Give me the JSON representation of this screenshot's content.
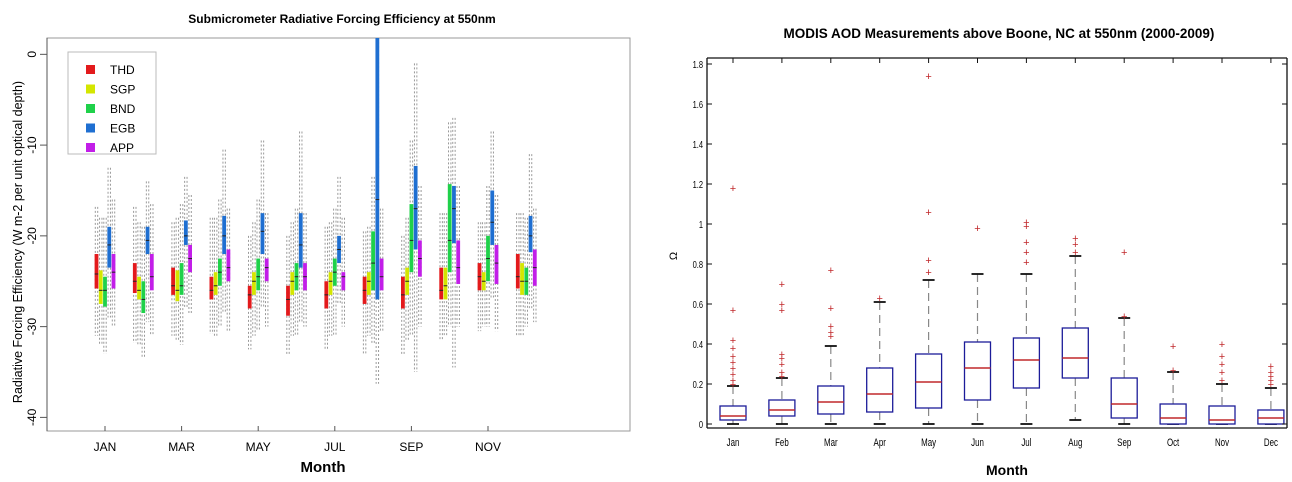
{
  "chart_data": [
    {
      "type": "box",
      "title": "Submicrometer Radiative Forcing Efficiency at 550nm",
      "xlabel": "Month",
      "ylabel": "Radiative Forcing Efficiency (W m-2 per unit optical depth)",
      "ylim": [
        -41.5,
        1.8
      ],
      "yticks": [
        0,
        -10,
        -20,
        -30,
        -40
      ],
      "ytick_labels": [
        "0",
        "-10",
        "-20",
        "-30",
        "-40"
      ],
      "x_ticks": [
        1,
        3,
        5,
        7,
        9,
        11
      ],
      "x_tick_labels": [
        "JAN",
        "MAR",
        "MAY",
        "JUL",
        "SEP",
        "NOV"
      ],
      "grid": false,
      "legend": "top-left",
      "months": [
        1,
        2,
        3,
        4,
        5,
        6,
        7,
        8,
        9,
        10,
        11,
        12
      ],
      "series": [
        {
          "name": "THD",
          "color": "#e31a1c",
          "boxes": [
            {
              "whisker_lo": -31.0,
              "q1": -25.8,
              "median": -24.2,
              "q3": -22.0,
              "whisker_hi": -16.8
            },
            {
              "whisker_lo": -31.8,
              "q1": -26.3,
              "median": -25.0,
              "q3": -23.0,
              "whisker_hi": -16.8
            },
            {
              "whisker_lo": -31.0,
              "q1": -26.5,
              "median": -25.5,
              "q3": -23.5,
              "whisker_hi": -18.5
            },
            {
              "whisker_lo": -30.8,
              "q1": -27.0,
              "median": -26.0,
              "q3": -24.5,
              "whisker_hi": -18.0
            },
            {
              "whisker_lo": -32.5,
              "q1": -28.0,
              "median": -26.5,
              "q3": -25.5,
              "whisker_hi": -20.0
            },
            {
              "whisker_lo": -33.0,
              "q1": -28.8,
              "median": -27.0,
              "q3": -25.5,
              "whisker_hi": -20.0
            },
            {
              "whisker_lo": -32.5,
              "q1": -28.0,
              "median": -26.5,
              "q3": -25.0,
              "whisker_hi": -19.0
            },
            {
              "whisker_lo": -33.0,
              "q1": -27.5,
              "median": -26.0,
              "q3": -24.5,
              "whisker_hi": -19.5
            },
            {
              "whisker_lo": -33.0,
              "q1": -28.0,
              "median": -26.5,
              "q3": -24.5,
              "whisker_hi": -20.0
            },
            {
              "whisker_lo": -31.5,
              "q1": -27.0,
              "median": -26.0,
              "q3": -23.5,
              "whisker_hi": -17.5
            },
            {
              "whisker_lo": -30.5,
              "q1": -26.0,
              "median": -24.5,
              "q3": -23.0,
              "whisker_hi": -18.5
            },
            {
              "whisker_lo": -31.0,
              "q1": -25.8,
              "median": -24.5,
              "q3": -22.0,
              "whisker_hi": -17.5
            }
          ]
        },
        {
          "name": "SGP",
          "color": "#d4e600",
          "boxes": [
            {
              "whisker_lo": -32.0,
              "q1": -27.5,
              "median": -26.0,
              "q3": -23.8,
              "whisker_hi": -18.0
            },
            {
              "whisker_lo": -32.0,
              "q1": -27.0,
              "median": -26.0,
              "q3": -24.5,
              "whisker_hi": -18.5
            },
            {
              "whisker_lo": -31.5,
              "q1": -27.2,
              "median": -26.0,
              "q3": -23.8,
              "whisker_hi": -18.0
            },
            {
              "whisker_lo": -31.0,
              "q1": -26.5,
              "median": -25.5,
              "q3": -24.0,
              "whisker_hi": -18.0
            },
            {
              "whisker_lo": -31.0,
              "q1": -26.5,
              "median": -25.0,
              "q3": -24.0,
              "whisker_hi": -18.5
            },
            {
              "whisker_lo": -31.0,
              "q1": -26.5,
              "median": -25.0,
              "q3": -24.0,
              "whisker_hi": -18.5
            },
            {
              "whisker_lo": -31.0,
              "q1": -26.5,
              "median": -25.0,
              "q3": -24.0,
              "whisker_hi": -18.5
            },
            {
              "whisker_lo": -31.0,
              "q1": -26.5,
              "median": -25.0,
              "q3": -24.0,
              "whisker_hi": -19.0
            },
            {
              "whisker_lo": -31.5,
              "q1": -26.5,
              "median": -25.0,
              "q3": -23.5,
              "whisker_hi": -18.0
            },
            {
              "whisker_lo": -31.0,
              "q1": -27.0,
              "median": -25.5,
              "q3": -23.5,
              "whisker_hi": -17.5
            },
            {
              "whisker_lo": -30.0,
              "q1": -26.0,
              "median": -25.0,
              "q3": -24.0,
              "whisker_hi": -18.5
            },
            {
              "whisker_lo": -31.0,
              "q1": -26.5,
              "median": -25.0,
              "q3": -23.0,
              "whisker_hi": -17.5
            }
          ]
        },
        {
          "name": "BND",
          "color": "#1fd14a",
          "boxes": [
            {
              "whisker_lo": -33.0,
              "q1": -27.8,
              "median": -26.0,
              "q3": -24.5,
              "whisker_hi": -18.0
            },
            {
              "whisker_lo": -33.5,
              "q1": -28.5,
              "median": -27.0,
              "q3": -25.0,
              "whisker_hi": -19.0
            },
            {
              "whisker_lo": -32.0,
              "q1": -26.5,
              "median": -25.5,
              "q3": -23.0,
              "whisker_hi": -16.5
            },
            {
              "whisker_lo": -30.0,
              "q1": -25.5,
              "median": -24.0,
              "q3": -22.5,
              "whisker_hi": -16.0
            },
            {
              "whisker_lo": -30.5,
              "q1": -26.0,
              "median": -24.5,
              "q3": -22.5,
              "whisker_hi": -16.0
            },
            {
              "whisker_lo": -31.0,
              "q1": -26.0,
              "median": -24.5,
              "q3": -23.0,
              "whisker_hi": -17.0
            },
            {
              "whisker_lo": -31.0,
              "q1": -25.5,
              "median": -24.0,
              "q3": -22.5,
              "whisker_hi": -17.0
            },
            {
              "whisker_lo": -32.0,
              "q1": -26.0,
              "median": -23.0,
              "q3": -19.5,
              "whisker_hi": -13.5
            },
            {
              "whisker_lo": -31.0,
              "q1": -24.0,
              "median": -20.5,
              "q3": -16.5,
              "whisker_hi": -9.5
            },
            {
              "whisker_lo": -30.0,
              "q1": -24.0,
              "median": -20.5,
              "q3": -14.3,
              "whisker_hi": -7.5
            },
            {
              "whisker_lo": -30.0,
              "q1": -25.0,
              "median": -22.5,
              "q3": -20.0,
              "whisker_hi": -14.5
            },
            {
              "whisker_lo": -30.0,
              "q1": -26.5,
              "median": -25.0,
              "q3": -23.5,
              "whisker_hi": -18.0
            }
          ]
        },
        {
          "name": "EGB",
          "color": "#1f6fd1",
          "boxes": [
            {
              "whisker_lo": -29.0,
              "q1": -23.5,
              "median": -21.0,
              "q3": -19.0,
              "whisker_hi": -12.5
            },
            {
              "whisker_lo": -29.5,
              "q1": -22.0,
              "median": -20.5,
              "q3": -19.0,
              "whisker_hi": -14.0
            },
            {
              "whisker_lo": -28.0,
              "q1": -21.0,
              "median": -20.0,
              "q3": -18.3,
              "whisker_hi": -13.5
            },
            {
              "whisker_lo": -28.5,
              "q1": -22.0,
              "median": -20.0,
              "q3": -17.8,
              "whisker_hi": -10.5
            },
            {
              "whisker_lo": -28.0,
              "q1": -22.0,
              "median": -19.5,
              "q3": -17.5,
              "whisker_hi": -9.5
            },
            {
              "whisker_lo": -29.5,
              "q1": -23.5,
              "median": -21.0,
              "q3": -17.5,
              "whisker_hi": -8.5
            },
            {
              "whisker_lo": -27.5,
              "q1": -23.0,
              "median": -21.5,
              "q3": -20.0,
              "whisker_hi": -13.5
            },
            {
              "whisker_lo": -36.3,
              "q1": -27.0,
              "median": -16.0,
              "q3": 1.8,
              "whisker_hi": 1.8
            },
            {
              "whisker_lo": -35.0,
              "q1": -21.5,
              "median": -17.0,
              "q3": -12.3,
              "whisker_hi": -1.0
            },
            {
              "whisker_lo": -34.5,
              "q1": -20.8,
              "median": -17.0,
              "q3": -14.5,
              "whisker_hi": -7.0
            },
            {
              "whisker_lo": -27.0,
              "q1": -21.0,
              "median": -18.5,
              "q3": -15.0,
              "whisker_hi": -8.5
            },
            {
              "whisker_lo": -28.0,
              "q1": -21.8,
              "median": -20.0,
              "q3": -17.8,
              "whisker_hi": -11.0
            }
          ]
        },
        {
          "name": "APP",
          "color": "#c21ee8",
          "boxes": [
            {
              "whisker_lo": -30.0,
              "q1": -25.8,
              "median": -24.0,
              "q3": -22.0,
              "whisker_hi": -16.0
            },
            {
              "whisker_lo": -31.0,
              "q1": -26.0,
              "median": -24.5,
              "q3": -22.0,
              "whisker_hi": -16.5
            },
            {
              "whisker_lo": -28.5,
              "q1": -24.0,
              "median": -22.5,
              "q3": -21.0,
              "whisker_hi": -15.5
            },
            {
              "whisker_lo": -30.5,
              "q1": -25.0,
              "median": -23.5,
              "q3": -21.5,
              "whisker_hi": -17.0
            },
            {
              "whisker_lo": -30.0,
              "q1": -25.0,
              "median": -23.5,
              "q3": -22.5,
              "whisker_hi": -17.5
            },
            {
              "whisker_lo": -30.0,
              "q1": -26.0,
              "median": -24.5,
              "q3": -23.0,
              "whisker_hi": -17.5
            },
            {
              "whisker_lo": -30.0,
              "q1": -26.0,
              "median": -24.5,
              "q3": -24.0,
              "whisker_hi": -18.0
            },
            {
              "whisker_lo": -30.5,
              "q1": -26.0,
              "median": -24.5,
              "q3": -22.5,
              "whisker_hi": -17.0
            },
            {
              "whisker_lo": -30.0,
              "q1": -24.5,
              "median": -22.5,
              "q3": -20.5,
              "whisker_hi": -14.5
            },
            {
              "whisker_lo": -30.0,
              "q1": -25.3,
              "median": -23.5,
              "q3": -20.5,
              "whisker_hi": -14.5
            },
            {
              "whisker_lo": -30.5,
              "q1": -25.3,
              "median": -23.0,
              "q3": -21.0,
              "whisker_hi": -15.5
            },
            {
              "whisker_lo": -29.5,
              "q1": -25.5,
              "median": -23.5,
              "q3": -21.5,
              "whisker_hi": -17.0
            }
          ]
        }
      ]
    },
    {
      "type": "box",
      "title": "MODIS AOD Measurements above Boone, NC at 550nm (2000-2009)",
      "xlabel": "Month",
      "ylabel": "Ω",
      "ylim": [
        -0.02,
        1.83
      ],
      "yticks": [
        0,
        0.2,
        0.4,
        0.6,
        0.8,
        1,
        1.2,
        1.4,
        1.6,
        1.8
      ],
      "ytick_labels": [
        "0",
        "0.2",
        "0.4",
        "0.6",
        "0.8",
        "1",
        "1.2",
        "1.4",
        "1.6",
        "1.8"
      ],
      "grid": false,
      "box_color": "#1c1c99",
      "median_color": "#c0282b",
      "whisker_color": "#888888",
      "outlier_color": "#c0282b",
      "categories": [
        "Jan",
        "Feb",
        "Mar",
        "Apr",
        "May",
        "Jun",
        "Jul",
        "Aug",
        "Sep",
        "Oct",
        "Nov",
        "Dec"
      ],
      "boxes": [
        {
          "whisker_lo": 0.0,
          "q1": 0.02,
          "median": 0.04,
          "q3": 0.09,
          "whisker_hi": 0.19,
          "outliers": [
            0.2,
            0.22,
            0.25,
            0.28,
            0.31,
            0.34,
            0.38,
            0.42,
            0.57,
            1.18
          ]
        },
        {
          "whisker_lo": 0.0,
          "q1": 0.04,
          "median": 0.07,
          "q3": 0.12,
          "whisker_hi": 0.23,
          "outliers": [
            0.24,
            0.26,
            0.3,
            0.33,
            0.35,
            0.57,
            0.6,
            0.7
          ]
        },
        {
          "whisker_lo": 0.0,
          "q1": 0.05,
          "median": 0.11,
          "q3": 0.19,
          "whisker_hi": 0.39,
          "outliers": [
            0.44,
            0.46,
            0.49,
            0.58,
            0.77
          ]
        },
        {
          "whisker_lo": 0.0,
          "q1": 0.06,
          "median": 0.15,
          "q3": 0.28,
          "whisker_hi": 0.61,
          "outliers": [
            0.63
          ]
        },
        {
          "whisker_lo": 0.0,
          "q1": 0.08,
          "median": 0.21,
          "q3": 0.35,
          "whisker_hi": 0.72,
          "outliers": [
            0.76,
            0.82,
            1.06,
            1.74
          ]
        },
        {
          "whisker_lo": 0.0,
          "q1": 0.12,
          "median": 0.28,
          "q3": 0.41,
          "whisker_hi": 0.75,
          "outliers": [
            0.98
          ]
        },
        {
          "whisker_lo": 0.0,
          "q1": 0.18,
          "median": 0.32,
          "q3": 0.43,
          "whisker_hi": 0.75,
          "outliers": [
            0.81,
            0.86,
            0.91,
            0.99,
            1.01
          ]
        },
        {
          "whisker_lo": 0.02,
          "q1": 0.23,
          "median": 0.33,
          "q3": 0.48,
          "whisker_hi": 0.84,
          "outliers": [
            0.86,
            0.9,
            0.93
          ]
        },
        {
          "whisker_lo": 0.0,
          "q1": 0.03,
          "median": 0.1,
          "q3": 0.23,
          "whisker_hi": 0.53,
          "outliers": [
            0.54,
            0.86
          ]
        },
        {
          "whisker_lo": 0.0,
          "q1": 0.0,
          "median": 0.03,
          "q3": 0.1,
          "whisker_hi": 0.26,
          "outliers": [
            0.27,
            0.39
          ]
        },
        {
          "whisker_lo": 0.0,
          "q1": 0.0,
          "median": 0.02,
          "q3": 0.09,
          "whisker_hi": 0.2,
          "outliers": [
            0.22,
            0.26,
            0.3,
            0.34,
            0.4
          ]
        },
        {
          "whisker_lo": 0.0,
          "q1": 0.0,
          "median": 0.03,
          "q3": 0.07,
          "whisker_hi": 0.18,
          "outliers": [
            0.2,
            0.22,
            0.24,
            0.26,
            0.29
          ]
        }
      ]
    }
  ]
}
